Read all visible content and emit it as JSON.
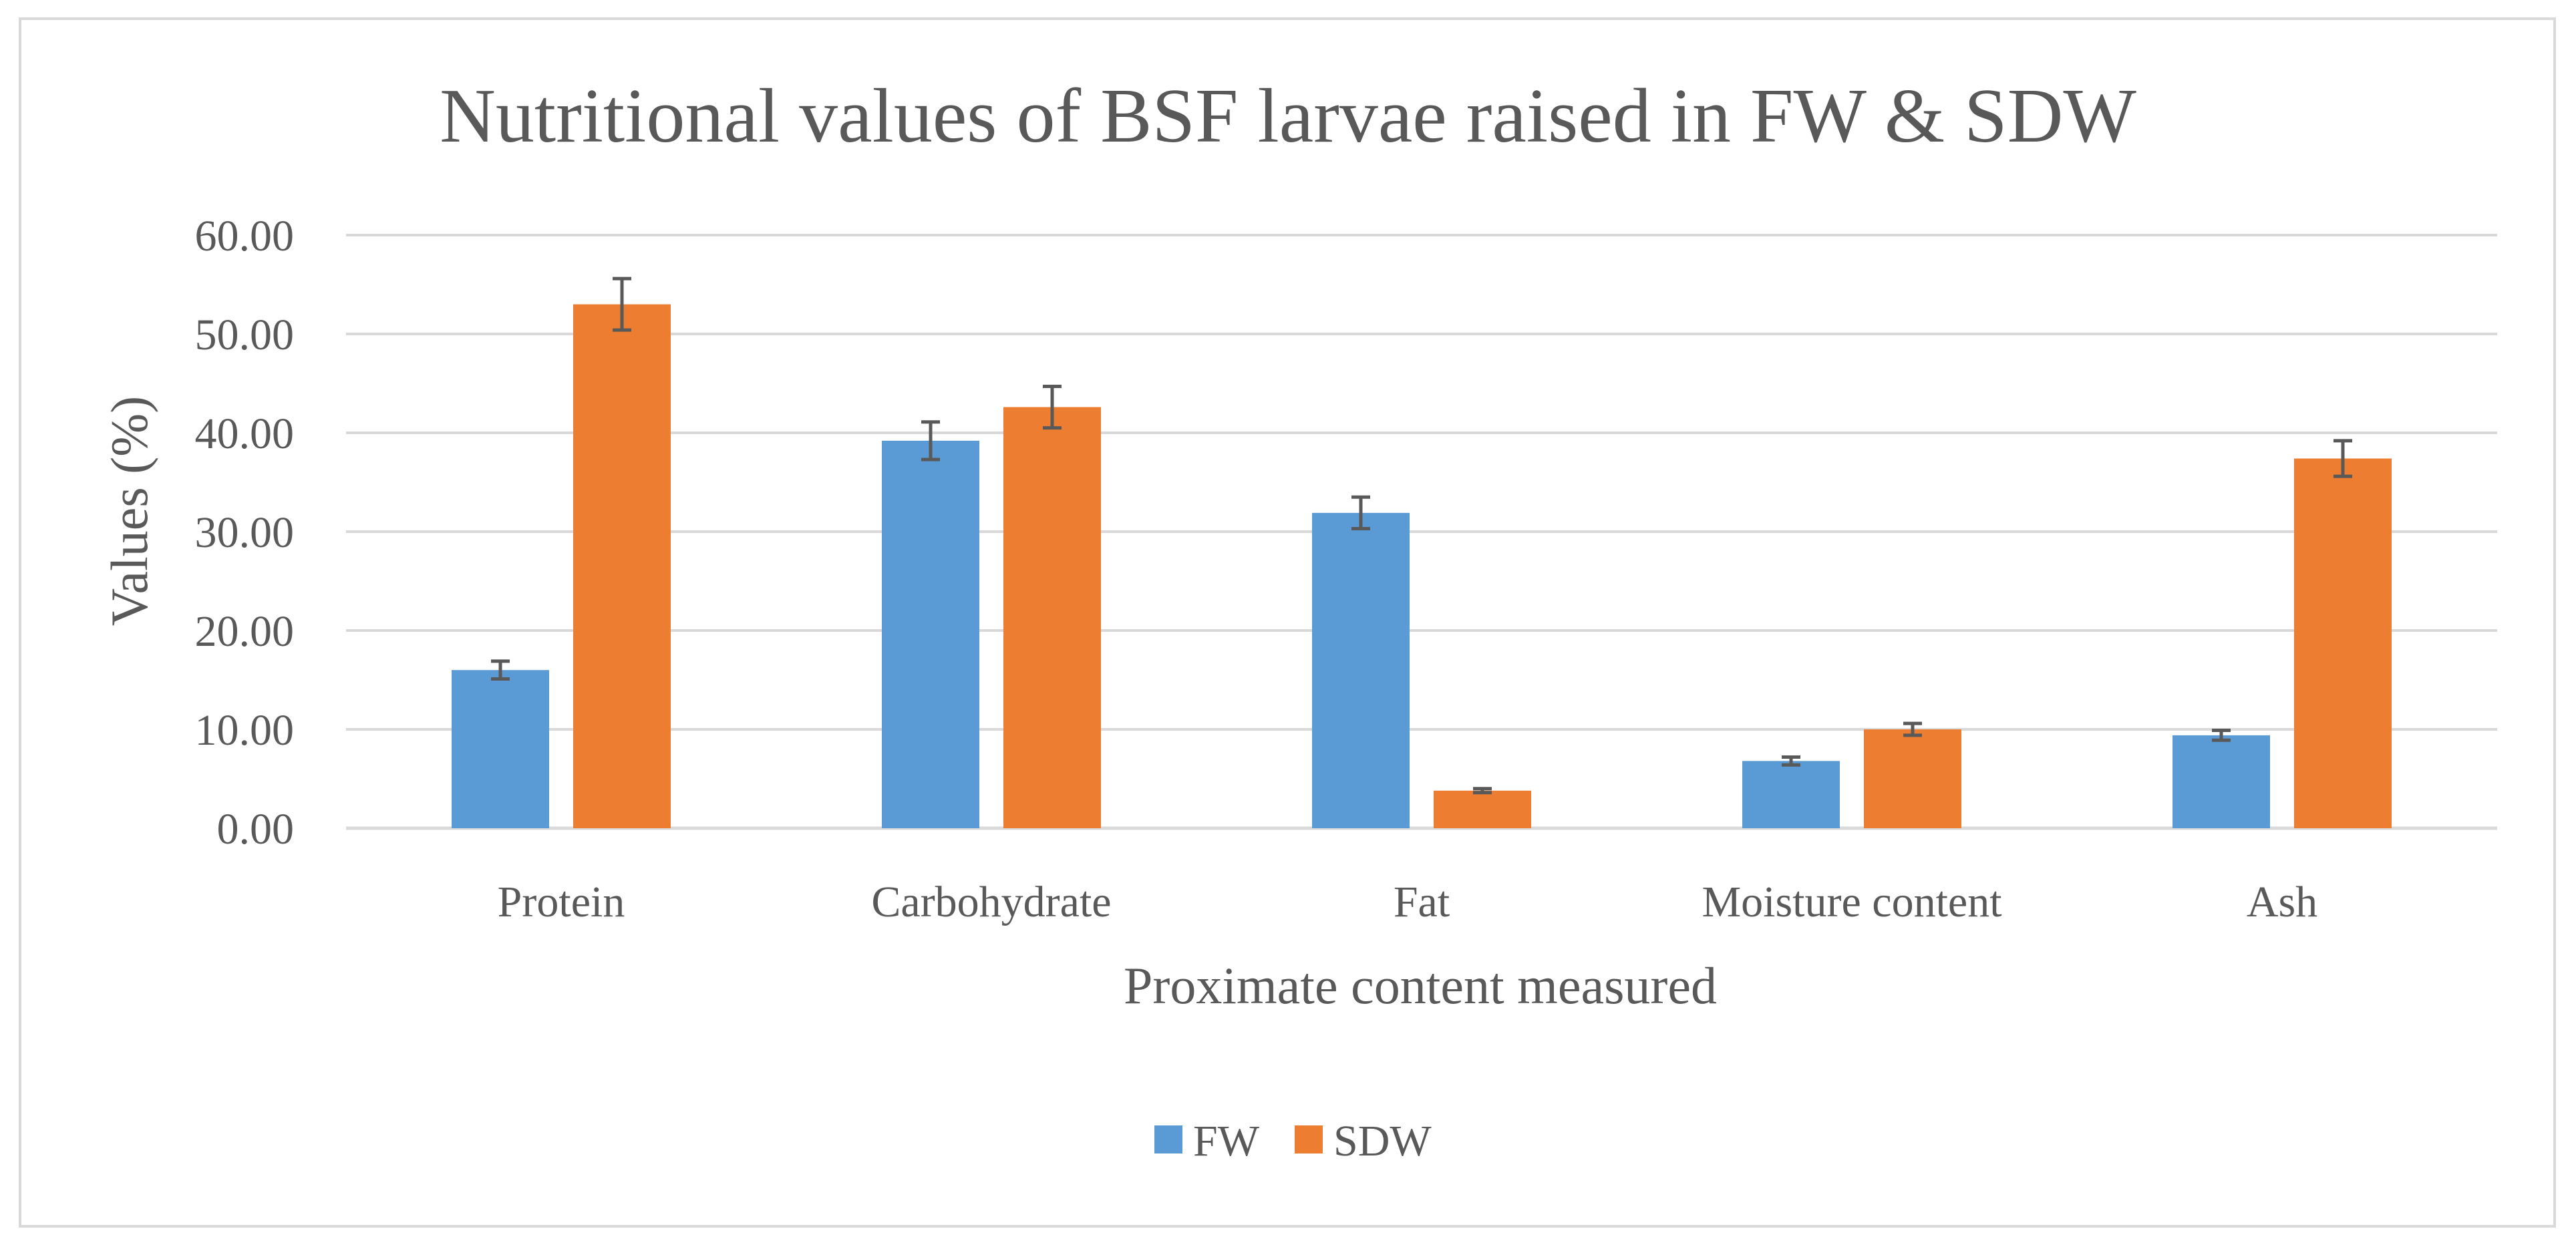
{
  "chart_data": {
    "type": "bar",
    "title": "Nutritional values of BSF larvae raised in FW & SDW",
    "xlabel": "Proximate content measured",
    "ylabel": "Values (%)",
    "ylim": [
      0,
      60
    ],
    "yticks": [
      "0.00",
      "10.00",
      "20.00",
      "30.00",
      "40.00",
      "50.00",
      "60.00"
    ],
    "grid": true,
    "legend_position": "bottom",
    "error_bars": true,
    "categories": [
      "Protein",
      "Carbohydrate",
      "Fat",
      "Moisture content",
      "Ash"
    ],
    "series": [
      {
        "name": "FW",
        "color": "#5b9bd5",
        "values": [
          16.0,
          39.2,
          31.9,
          6.8,
          9.4
        ],
        "errors": [
          0.9,
          1.9,
          1.6,
          0.4,
          0.5
        ]
      },
      {
        "name": "SDW",
        "color": "#ed7d31",
        "values": [
          53.0,
          42.6,
          3.8,
          10.0,
          37.4
        ],
        "errors": [
          2.6,
          2.1,
          0.2,
          0.6,
          1.8
        ]
      }
    ]
  }
}
